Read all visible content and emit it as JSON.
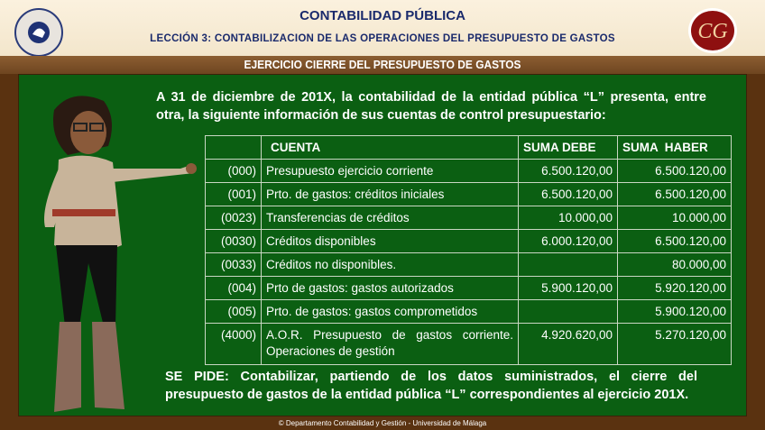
{
  "header": {
    "title": "CONTABILIDAD PÚBLICA",
    "subtitle": "LECCIÓN 3: CONTABILIZACION DE LAS OPERACIONES DEL PRESUPUESTO DE GASTOS",
    "logo_left": "Universidad de Málaga seal",
    "logo_right": "CG"
  },
  "board": {
    "title": "EJERCICIO CIERRE DEL PRESUPUESTO DE GASTOS",
    "intro": "A 31 de diciembre de 201X, la contabilidad de la entidad pública “L” presenta, entre otra, la siguiente información de sus cuentas de control presupuestario:",
    "table": {
      "headers": [
        "",
        "CUENTA",
        "SUMA DEBE",
        "SUMA  HABER"
      ],
      "rows": [
        [
          "(000)",
          "Presupuesto ejercicio corriente",
          "6.500.120,00",
          "6.500.120,00"
        ],
        [
          "(001)",
          "Prto. de gastos: créditos iniciales",
          "6.500.120,00",
          "6.500.120,00"
        ],
        [
          "(0023)",
          "Transferencias de créditos",
          "10.000,00",
          "10.000,00"
        ],
        [
          "(0030)",
          "Créditos disponibles",
          "6.000.120,00",
          "6.500.120,00"
        ],
        [
          "(0033)",
          "Créditos no disponibles.",
          "",
          "80.000,00"
        ],
        [
          "(004)",
          "Prto de gastos: gastos autorizados",
          "5.900.120,00",
          "5.920.120,00"
        ],
        [
          "(005)",
          "Prto. de gastos: gastos comprometidos",
          "",
          "5.900.120,00"
        ],
        [
          "(4000)",
          "A.O.R. Presupuesto de gastos corriente. Operaciones de gestión",
          "4.920.620,00",
          "5.270.120,00"
        ]
      ]
    },
    "pide_label": "SE PIDE",
    "pide_text": ": Contabilizar, partiendo de los datos suministrados, el cierre del presupuesto de gastos de la entidad pública “L” correspondientes al ejercicio 201X."
  },
  "footer": "© Departamento Contabilidad y Gestión - Universidad de Málaga",
  "colors": {
    "board": "#0b5f12",
    "frame": "#5a3210",
    "header_text": "#1a2a6c"
  }
}
